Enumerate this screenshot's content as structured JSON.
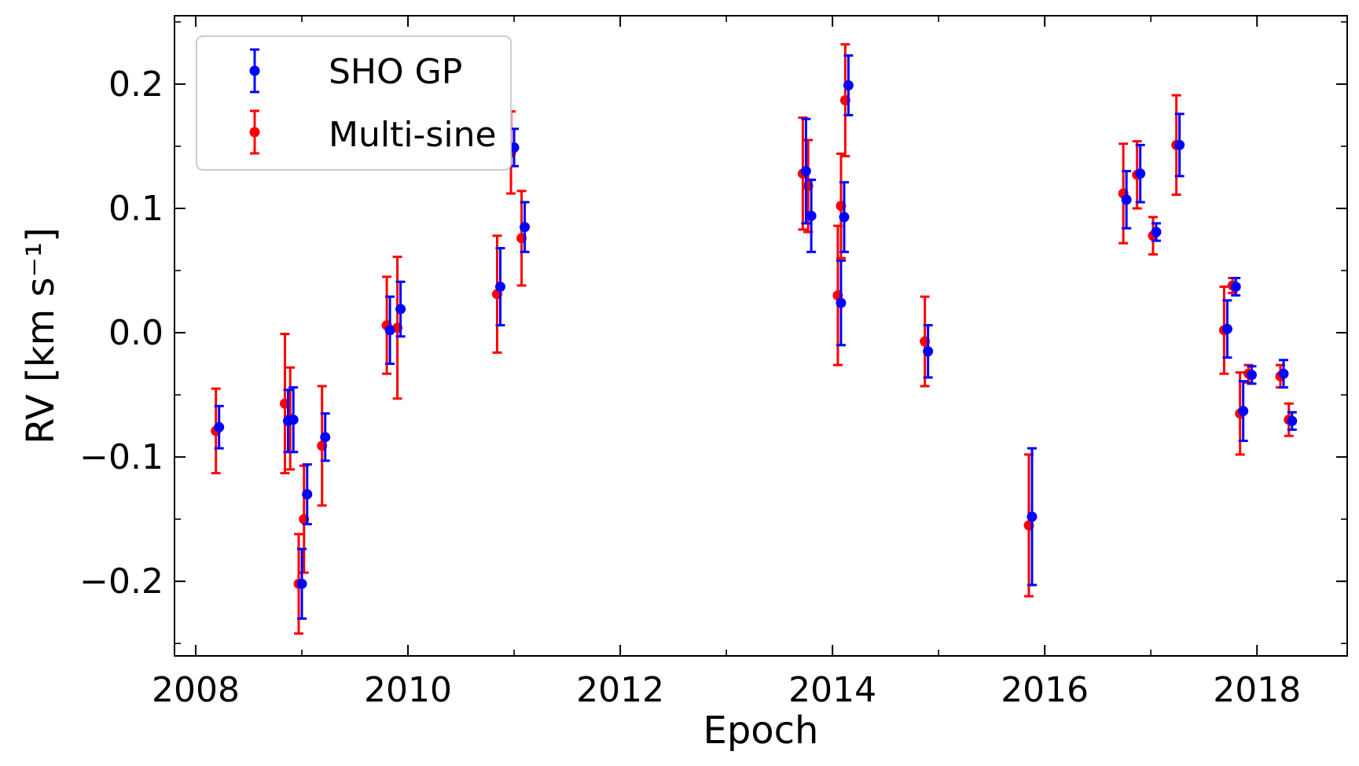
{
  "chart_data": {
    "type": "scatter",
    "xlabel": "Epoch",
    "ylabel": "RV [km s⁻¹]",
    "xlim": [
      2007.8,
      2018.85
    ],
    "ylim": [
      -0.26,
      0.255
    ],
    "x_ticks": [
      2008,
      2010,
      2012,
      2014,
      2016,
      2018
    ],
    "y_ticks": [
      -0.2,
      -0.1,
      0.0,
      0.1,
      0.2
    ],
    "x_tick_labels": [
      "2008",
      "2010",
      "2012",
      "2014",
      "2016",
      "2018"
    ],
    "y_tick_labels": [
      "−0.2",
      "−0.1",
      "0.0",
      "0.1",
      "0.2"
    ],
    "grid": false,
    "legend_position": "top-left",
    "series": [
      {
        "name": "SHO GP",
        "color": "#0000ff",
        "points": [
          {
            "x": 2008.22,
            "y": -0.076,
            "err": 0.017
          },
          {
            "x": 2008.87,
            "y": -0.071,
            "err": 0.025
          },
          {
            "x": 2008.92,
            "y": -0.07,
            "err": 0.026
          },
          {
            "x": 2009.0,
            "y": -0.202,
            "err": 0.028
          },
          {
            "x": 2009.05,
            "y": -0.13,
            "err": 0.024
          },
          {
            "x": 2009.22,
            "y": -0.084,
            "err": 0.019
          },
          {
            "x": 2009.83,
            "y": 0.002,
            "err": 0.027
          },
          {
            "x": 2009.93,
            "y": 0.019,
            "err": 0.022
          },
          {
            "x": 2010.87,
            "y": 0.037,
            "err": 0.031
          },
          {
            "x": 2011.0,
            "y": 0.149,
            "err": 0.015
          },
          {
            "x": 2011.1,
            "y": 0.085,
            "err": 0.02
          },
          {
            "x": 2013.75,
            "y": 0.13,
            "err": 0.042
          },
          {
            "x": 2013.8,
            "y": 0.094,
            "err": 0.029
          },
          {
            "x": 2014.08,
            "y": 0.024,
            "err": 0.034
          },
          {
            "x": 2014.11,
            "y": 0.093,
            "err": 0.028
          },
          {
            "x": 2014.15,
            "y": 0.199,
            "err": 0.024
          },
          {
            "x": 2014.9,
            "y": -0.015,
            "err": 0.021
          },
          {
            "x": 2015.88,
            "y": -0.148,
            "err": 0.055
          },
          {
            "x": 2016.77,
            "y": 0.107,
            "err": 0.023
          },
          {
            "x": 2016.9,
            "y": 0.128,
            "err": 0.023
          },
          {
            "x": 2017.05,
            "y": 0.081,
            "err": 0.007
          },
          {
            "x": 2017.27,
            "y": 0.151,
            "err": 0.025
          },
          {
            "x": 2017.72,
            "y": 0.003,
            "err": 0.023
          },
          {
            "x": 2017.8,
            "y": 0.037,
            "err": 0.007
          },
          {
            "x": 2017.87,
            "y": -0.063,
            "err": 0.024
          },
          {
            "x": 2017.95,
            "y": -0.034,
            "err": 0.007
          },
          {
            "x": 2018.25,
            "y": -0.033,
            "err": 0.011
          },
          {
            "x": 2018.33,
            "y": -0.071,
            "err": 0.007
          }
        ]
      },
      {
        "name": "Multi-sine",
        "color": "#ff0000",
        "points": [
          {
            "x": 2008.22,
            "y": -0.079,
            "err": 0.034
          },
          {
            "x": 2008.87,
            "y": -0.057,
            "err": 0.056
          },
          {
            "x": 2008.92,
            "y": -0.069,
            "err": 0.041
          },
          {
            "x": 2009.0,
            "y": -0.202,
            "err": 0.04
          },
          {
            "x": 2009.05,
            "y": -0.15,
            "err": 0.043
          },
          {
            "x": 2009.22,
            "y": -0.091,
            "err": 0.048
          },
          {
            "x": 2009.83,
            "y": 0.006,
            "err": 0.039
          },
          {
            "x": 2009.93,
            "y": 0.004,
            "err": 0.057
          },
          {
            "x": 2010.87,
            "y": 0.031,
            "err": 0.047
          },
          {
            "x": 2011.0,
            "y": 0.145,
            "err": 0.033
          },
          {
            "x": 2011.1,
            "y": 0.076,
            "err": 0.038
          },
          {
            "x": 2013.75,
            "y": 0.128,
            "err": 0.045
          },
          {
            "x": 2013.8,
            "y": 0.118,
            "err": 0.037
          },
          {
            "x": 2014.08,
            "y": 0.03,
            "err": 0.056
          },
          {
            "x": 2014.11,
            "y": 0.102,
            "err": 0.042
          },
          {
            "x": 2014.15,
            "y": 0.187,
            "err": 0.045
          },
          {
            "x": 2014.9,
            "y": -0.007,
            "err": 0.036
          },
          {
            "x": 2015.88,
            "y": -0.155,
            "err": 0.057
          },
          {
            "x": 2016.77,
            "y": 0.112,
            "err": 0.04
          },
          {
            "x": 2016.9,
            "y": 0.127,
            "err": 0.027
          },
          {
            "x": 2017.05,
            "y": 0.078,
            "err": 0.015
          },
          {
            "x": 2017.27,
            "y": 0.151,
            "err": 0.04
          },
          {
            "x": 2017.72,
            "y": 0.002,
            "err": 0.035
          },
          {
            "x": 2017.8,
            "y": 0.038,
            "err": 0.006
          },
          {
            "x": 2017.87,
            "y": -0.065,
            "err": 0.033
          },
          {
            "x": 2017.95,
            "y": -0.033,
            "err": 0.007
          },
          {
            "x": 2018.25,
            "y": -0.035,
            "err": 0.009
          },
          {
            "x": 2018.33,
            "y": -0.07,
            "err": 0.013
          }
        ]
      }
    ]
  }
}
